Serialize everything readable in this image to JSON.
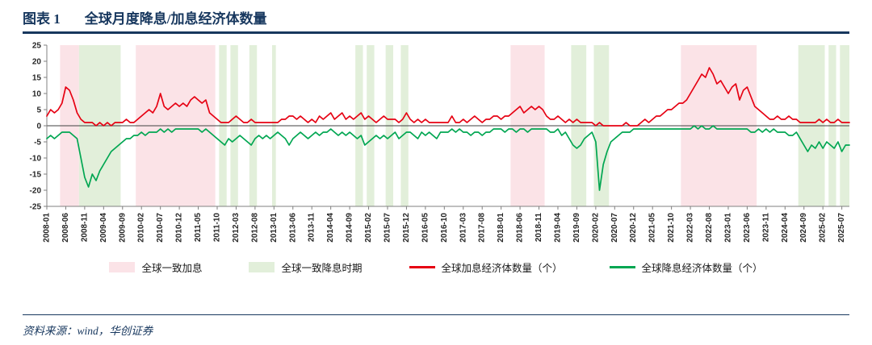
{
  "header": {
    "label": "图表 1",
    "title": "全球月度降息/加息经济体数量"
  },
  "footer": {
    "source": "资料来源：wind，华创证券"
  },
  "colors": {
    "hike_line": "#E60012",
    "cut_line": "#00A651",
    "hike_band": "#FBE3E7",
    "cut_band": "#E2EFDA",
    "navy": "#17375E"
  },
  "legend": [
    {
      "type": "area",
      "color": "#FBE3E7",
      "label": "全球一致加息"
    },
    {
      "type": "area",
      "color": "#E2EFDA",
      "label": "全球一致降息时期"
    },
    {
      "type": "line",
      "color": "#E60012",
      "label": "全球加息经济体数量（个）"
    },
    {
      "type": "line",
      "color": "#00A651",
      "label": "全球降息经济体数量（个）"
    }
  ],
  "chart_data": {
    "type": "line",
    "title": "全球月度降息/加息经济体数量",
    "xlabel": "",
    "ylabel": "",
    "ylim": [
      -25,
      25
    ],
    "y_ticks": [
      25,
      20,
      15,
      10,
      5,
      0,
      -5,
      -10,
      -15,
      -20,
      -25
    ],
    "grid": false,
    "legend_position": "bottom",
    "x_start": "2008-01",
    "x_end": "2025-09",
    "x_tick_interval_months": 5,
    "x_tick_labels": [
      "2008-01",
      "2008-06",
      "2008-11",
      "2009-04",
      "2009-09",
      "2010-02",
      "2010-07",
      "2010-12",
      "2011-05",
      "2011-10",
      "2012-03",
      "2012-08",
      "2013-01",
      "2013-06",
      "2013-11",
      "2014-04",
      "2014-09",
      "2015-02",
      "2015-07",
      "2015-12",
      "2016-05",
      "2016-10",
      "2017-03",
      "2017-08",
      "2018-01",
      "2018-06",
      "2018-11",
      "2019-04",
      "2019-09",
      "2020-02",
      "2020-07",
      "2020-12",
      "2021-05",
      "2021-10",
      "2022-03",
      "2022-08",
      "2023-01",
      "2023-06",
      "2023-11",
      "2024-04",
      "2024-09",
      "2025-02",
      "2025-07"
    ],
    "bands": [
      {
        "label": "全球一致加息",
        "color": "#FBE3E7",
        "start": "2008-05",
        "end": "2008-09"
      },
      {
        "label": "全球一致加息",
        "color": "#FBE3E7",
        "start": "2010-01",
        "end": "2011-09"
      },
      {
        "label": "全球一致加息",
        "color": "#FBE3E7",
        "start": "2018-04",
        "end": "2018-12"
      },
      {
        "label": "全球一致加息",
        "color": "#FBE3E7",
        "start": "2022-01",
        "end": "2023-08"
      },
      {
        "label": "全球一致降息时期",
        "color": "#E2EFDA",
        "start": "2008-10",
        "end": "2009-08"
      },
      {
        "label": "全球一致降息时期",
        "color": "#E2EFDA",
        "start": "2011-11",
        "end": "2011-12"
      },
      {
        "label": "全球一致降息时期",
        "color": "#E2EFDA",
        "start": "2012-02",
        "end": "2012-03"
      },
      {
        "label": "全球一致降息时期",
        "color": "#E2EFDA",
        "start": "2012-07",
        "end": "2012-08"
      },
      {
        "label": "全球一致降息时期",
        "color": "#E2EFDA",
        "start": "2013-01",
        "end": "2013-01"
      },
      {
        "label": "全球一致降息时期",
        "color": "#E2EFDA",
        "start": "2014-11",
        "end": "2014-12"
      },
      {
        "label": "全球一致降息时期",
        "color": "#E2EFDA",
        "start": "2015-02",
        "end": "2015-03"
      },
      {
        "label": "全球一致降息时期",
        "color": "#E2EFDA",
        "start": "2015-07",
        "end": "2015-08"
      },
      {
        "label": "全球一致降息时期",
        "color": "#E2EFDA",
        "start": "2015-11",
        "end": "2015-12"
      },
      {
        "label": "全球一致降息时期",
        "color": "#E2EFDA",
        "start": "2019-08",
        "end": "2019-11"
      },
      {
        "label": "全球一致降息时期",
        "color": "#E2EFDA",
        "start": "2020-02",
        "end": "2020-05"
      },
      {
        "label": "全球一致降息时期",
        "color": "#E2EFDA",
        "start": "2024-08",
        "end": "2025-02"
      },
      {
        "label": "全球一致降息时期",
        "color": "#E2EFDA",
        "start": "2025-04",
        "end": "2025-05"
      },
      {
        "label": "全球一致降息时期",
        "color": "#E2EFDA",
        "start": "2025-07",
        "end": "2025-09"
      }
    ],
    "series": [
      {
        "name": "全球加息经济体数量（个）",
        "color": "#E60012",
        "values": [
          3,
          5,
          4,
          5,
          7,
          12,
          11,
          8,
          4,
          2,
          1,
          1,
          1,
          0,
          1,
          0,
          1,
          0,
          1,
          1,
          1,
          2,
          1,
          1,
          2,
          3,
          4,
          5,
          4,
          6,
          10,
          6,
          5,
          6,
          7,
          6,
          7,
          6,
          8,
          9,
          8,
          7,
          8,
          4,
          3,
          2,
          1,
          1,
          1,
          2,
          3,
          2,
          1,
          1,
          2,
          1,
          1,
          1,
          1,
          1,
          1,
          1,
          2,
          2,
          3,
          3,
          2,
          3,
          2,
          1,
          2,
          1,
          3,
          2,
          3,
          4,
          2,
          3,
          4,
          2,
          3,
          2,
          3,
          4,
          2,
          3,
          2,
          1,
          2,
          3,
          2,
          2,
          2,
          1,
          2,
          4,
          2,
          1,
          2,
          1,
          2,
          1,
          1,
          1,
          1,
          1,
          1,
          3,
          1,
          1,
          2,
          1,
          2,
          3,
          2,
          1,
          2,
          2,
          3,
          3,
          2,
          3,
          3,
          4,
          5,
          6,
          4,
          5,
          6,
          5,
          6,
          5,
          3,
          2,
          2,
          3,
          2,
          1,
          2,
          1,
          2,
          1,
          1,
          1,
          1,
          0,
          1,
          0,
          0,
          0,
          0,
          0,
          0,
          1,
          0,
          0,
          0,
          1,
          2,
          1,
          2,
          3,
          3,
          4,
          5,
          5,
          6,
          7,
          7,
          8,
          10,
          12,
          14,
          16,
          15,
          18,
          16,
          13,
          14,
          12,
          10,
          12,
          13,
          8,
          11,
          12,
          9,
          6,
          5,
          4,
          3,
          2,
          2,
          3,
          2,
          2,
          3,
          2,
          2,
          1,
          1,
          1,
          1,
          1,
          2,
          1,
          2,
          1,
          1,
          2,
          1,
          1,
          1
        ]
      },
      {
        "name": "全球降息经济体数量（个）",
        "color": "#00A651",
        "values": [
          -4,
          -3,
          -4,
          -3,
          -2,
          -2,
          -2,
          -3,
          -4,
          -10,
          -16,
          -19,
          -15,
          -17,
          -14,
          -12,
          -10,
          -8,
          -7,
          -6,
          -5,
          -4,
          -4,
          -3,
          -3,
          -2,
          -3,
          -2,
          -2,
          -2,
          -1,
          -2,
          -1,
          -2,
          -1,
          -1,
          -1,
          -1,
          -1,
          -1,
          -1,
          -2,
          -1,
          -2,
          -3,
          -4,
          -5,
          -6,
          -4,
          -5,
          -4,
          -3,
          -4,
          -5,
          -6,
          -4,
          -3,
          -4,
          -3,
          -4,
          -3,
          -2,
          -3,
          -4,
          -6,
          -4,
          -3,
          -2,
          -3,
          -4,
          -3,
          -2,
          -3,
          -2,
          -2,
          -1,
          -2,
          -3,
          -2,
          -3,
          -2,
          -3,
          -4,
          -3,
          -6,
          -5,
          -4,
          -3,
          -4,
          -3,
          -4,
          -3,
          -2,
          -4,
          -3,
          -2,
          -2,
          -3,
          -4,
          -2,
          -3,
          -2,
          -3,
          -4,
          -2,
          -2,
          -2,
          -1,
          -2,
          -1,
          -2,
          -2,
          -3,
          -2,
          -2,
          -3,
          -2,
          -2,
          -1,
          -1,
          -1,
          -2,
          -1,
          -1,
          -2,
          -1,
          -1,
          -2,
          -1,
          -1,
          -1,
          -1,
          -1,
          -2,
          -2,
          -1,
          -3,
          -2,
          -4,
          -6,
          -7,
          -6,
          -4,
          -3,
          -2,
          -5,
          -20,
          -12,
          -8,
          -5,
          -4,
          -3,
          -2,
          -2,
          -2,
          -1,
          -1,
          -1,
          -1,
          -1,
          -1,
          -1,
          -1,
          -1,
          -1,
          -1,
          -1,
          -1,
          -1,
          -1,
          -1,
          0,
          -1,
          0,
          -1,
          -1,
          0,
          -1,
          -1,
          -1,
          -1,
          -1,
          -1,
          -1,
          -1,
          -1,
          -2,
          -2,
          -1,
          -2,
          -1,
          -2,
          -1,
          -2,
          -2,
          -2,
          -3,
          -3,
          -2,
          -4,
          -6,
          -8,
          -6,
          -7,
          -5,
          -7,
          -5,
          -6,
          -7,
          -5,
          -8,
          -6,
          -6
        ]
      }
    ]
  }
}
